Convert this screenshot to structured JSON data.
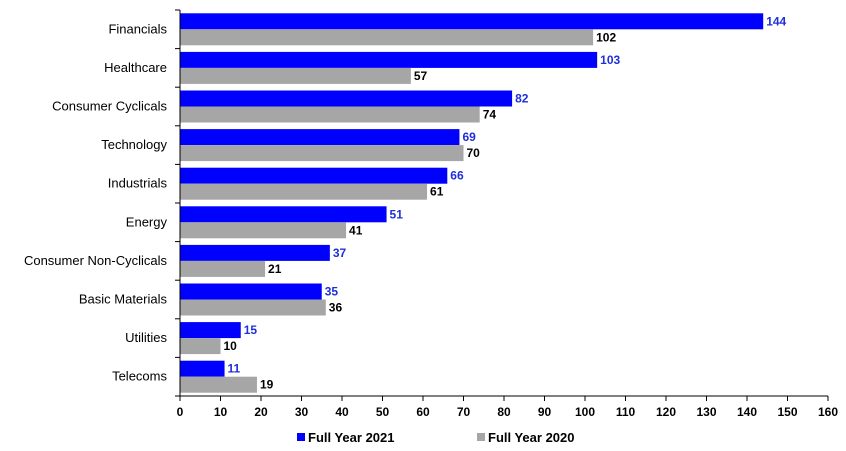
{
  "chart_data": {
    "type": "bar",
    "orientation": "horizontal",
    "categories": [
      "Financials",
      "Healthcare",
      "Consumer Cyclicals",
      "Technology",
      "Industrials",
      "Energy",
      "Consumer Non-Cyclicals",
      "Basic Materials",
      "Utilities",
      "Telecoms"
    ],
    "series": [
      {
        "name": "Full Year 2021",
        "color": "#0000FF",
        "label_color": "#1F2FD9",
        "values": [
          144,
          103,
          82,
          69,
          66,
          51,
          37,
          35,
          15,
          11
        ]
      },
      {
        "name": "Full Year 2020",
        "color": "#A6A6A6",
        "label_color": "#000000",
        "values": [
          102,
          57,
          74,
          70,
          61,
          41,
          21,
          36,
          10,
          19
        ]
      }
    ],
    "xlim": [
      0,
      160
    ],
    "xticks": [
      0,
      10,
      20,
      30,
      40,
      50,
      60,
      70,
      80,
      90,
      100,
      110,
      120,
      130,
      140,
      150,
      160
    ],
    "grid": false,
    "legend_position": "bottom",
    "title": "",
    "xlabel": "",
    "ylabel": ""
  }
}
